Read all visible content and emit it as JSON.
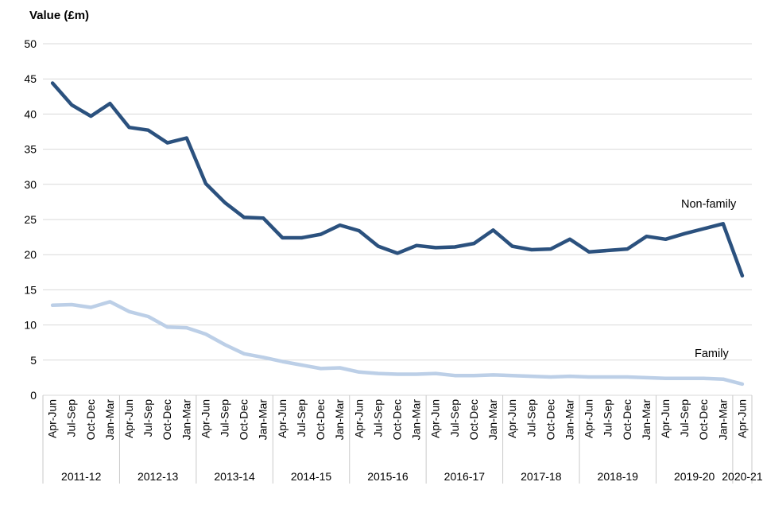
{
  "axis_title": "Value (£m)",
  "colors": {
    "gridline": "#d9d9d9",
    "separator": "#c9c9c9",
    "nonfamily_line": "#2b517e",
    "family_line": "#bccfe7",
    "text": "#000000"
  },
  "chart_data": {
    "type": "line",
    "title": "",
    "xlabel": "",
    "ylabel": "Value (£m)",
    "ylim": [
      0,
      50
    ],
    "ytick_step": 5,
    "grid": true,
    "legend_position": "end-of-line-labels",
    "year_groups": [
      {
        "label": "2011-12",
        "n": 4
      },
      {
        "label": "2012-13",
        "n": 4
      },
      {
        "label": "2013-14",
        "n": 4
      },
      {
        "label": "2014-15",
        "n": 4
      },
      {
        "label": "2015-16",
        "n": 4
      },
      {
        "label": "2016-17",
        "n": 4
      },
      {
        "label": "2017-18",
        "n": 4
      },
      {
        "label": "2018-19",
        "n": 4
      },
      {
        "label": "2019-20",
        "n": 4
      },
      {
        "label": "2020-21",
        "n": 1
      }
    ],
    "categories": [
      "Apr-Jun",
      "Jul-Sep",
      "Oct-Dec",
      "Jan-Mar",
      "Apr-Jun",
      "Jul-Sep",
      "Oct-Dec",
      "Jan-Mar",
      "Apr-Jun",
      "Jul-Sep",
      "Oct-Dec",
      "Jan-Mar",
      "Apr-Jun",
      "Jul-Sep",
      "Oct-Dec",
      "Jan-Mar",
      "Apr-Jun",
      "Jul-Sep",
      "Oct-Dec",
      "Jan-Mar",
      "Apr-Jun",
      "Jul-Sep",
      "Oct-Dec",
      "Jan-Mar",
      "Apr-Jun",
      "Jul-Sep",
      "Oct-Dec",
      "Jan-Mar",
      "Apr-Jun",
      "Jul-Sep",
      "Oct-Dec",
      "Jan-Mar",
      "Apr-Jun",
      "Jul-Sep",
      "Oct-Dec",
      "Jan-Mar",
      "Apr-Jun"
    ],
    "series": [
      {
        "name": "Non-family",
        "color": "#2b517e",
        "values": [
          44.4,
          41.3,
          39.7,
          41.5,
          38.1,
          37.7,
          35.9,
          36.6,
          30.1,
          27.4,
          25.3,
          25.2,
          22.4,
          22.4,
          22.9,
          24.2,
          23.4,
          21.2,
          20.2,
          21.3,
          21.0,
          21.1,
          21.6,
          23.5,
          21.2,
          20.7,
          20.8,
          22.2,
          20.4,
          20.6,
          20.8,
          22.6,
          22.2,
          23.0,
          23.7,
          24.4,
          17.0
        ]
      },
      {
        "name": "Family",
        "color": "#bccfe7",
        "values": [
          12.8,
          12.9,
          12.5,
          13.3,
          11.9,
          11.2,
          9.7,
          9.6,
          8.7,
          7.2,
          5.9,
          5.4,
          4.8,
          4.3,
          3.8,
          3.9,
          3.3,
          3.1,
          3.0,
          3.0,
          3.1,
          2.8,
          2.8,
          2.9,
          2.8,
          2.7,
          2.6,
          2.7,
          2.6,
          2.6,
          2.6,
          2.5,
          2.4,
          2.4,
          2.4,
          2.3,
          1.6
        ]
      }
    ]
  }
}
